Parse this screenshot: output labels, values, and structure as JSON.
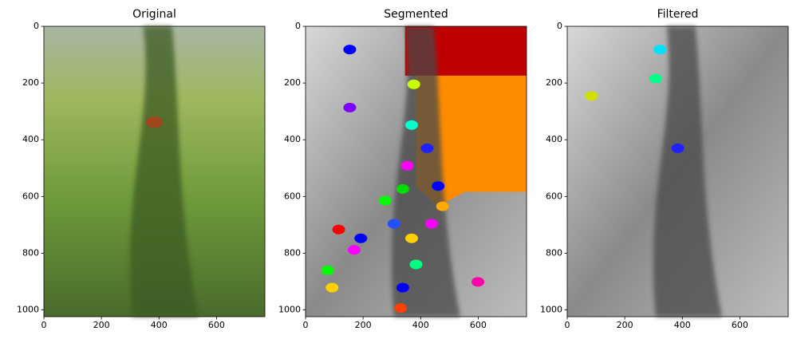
{
  "chart_data": [
    {
      "type": "image",
      "title": "Original",
      "xlim": [
        0,
        768
      ],
      "ylim": [
        1024,
        0
      ],
      "xticks": [
        0,
        200,
        400,
        600
      ],
      "yticks": [
        0,
        200,
        400,
        600,
        800,
        1000
      ]
    },
    {
      "type": "image",
      "title": "Segmented",
      "xlim": [
        0,
        768
      ],
      "ylim": [
        1024,
        0
      ],
      "xticks": [
        0,
        200,
        400,
        600
      ],
      "yticks": [
        0,
        200,
        400,
        600,
        800,
        1000
      ]
    },
    {
      "type": "image",
      "title": "Filtered",
      "xlim": [
        0,
        768
      ],
      "ylim": [
        1024,
        0
      ],
      "xticks": [
        0,
        200,
        400,
        600
      ],
      "yticks": [
        0,
        200,
        400,
        600,
        800,
        1000
      ]
    }
  ]
}
